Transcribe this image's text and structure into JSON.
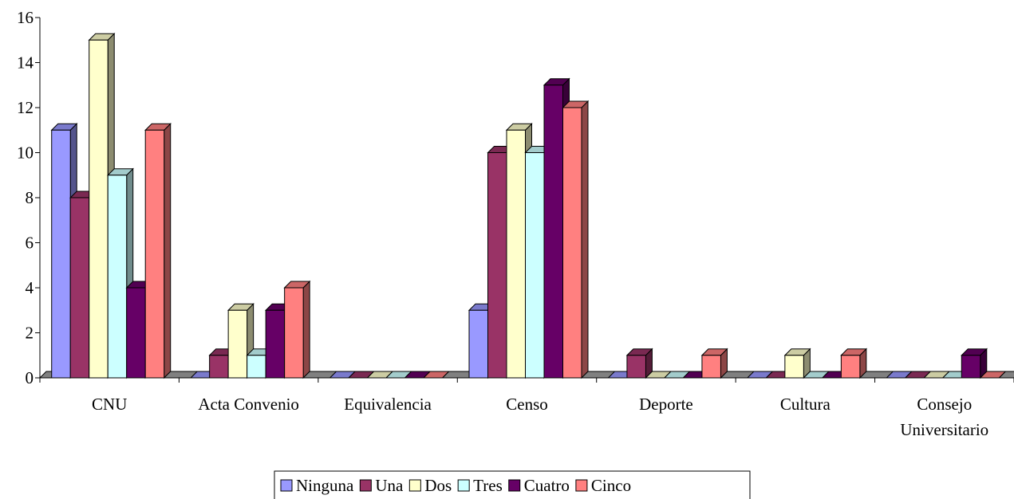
{
  "chart_data": {
    "type": "bar",
    "title": "",
    "xlabel": "",
    "ylabel": "",
    "ylim": [
      0,
      16
    ],
    "yticks": [
      0,
      2,
      4,
      6,
      8,
      10,
      12,
      14,
      16
    ],
    "grid": false,
    "three_d": true,
    "legend_position": "bottom",
    "categories": [
      "CNU",
      "Acta Convenio",
      "Equivalencia",
      "Censo",
      "Deporte",
      "Cultura",
      "Consejo Universitario"
    ],
    "series": [
      {
        "name": "Ninguna",
        "color": "#9999FF",
        "values": [
          11,
          0,
          0,
          3,
          0,
          0,
          0
        ]
      },
      {
        "name": "Una",
        "color": "#993366",
        "values": [
          8,
          1,
          0,
          10,
          1,
          0,
          0
        ]
      },
      {
        "name": "Dos",
        "color": "#FFFFCC",
        "values": [
          15,
          3,
          0,
          11,
          0,
          1,
          0
        ]
      },
      {
        "name": "Tres",
        "color": "#CCFFFF",
        "values": [
          9,
          1,
          0,
          10,
          0,
          0,
          0
        ]
      },
      {
        "name": "Cuatro",
        "color": "#660066",
        "values": [
          4,
          3,
          0,
          13,
          0,
          0,
          1
        ]
      },
      {
        "name": "Cinco",
        "color": "#FF8080",
        "values": [
          11,
          4,
          0,
          12,
          1,
          1,
          0
        ]
      }
    ]
  }
}
